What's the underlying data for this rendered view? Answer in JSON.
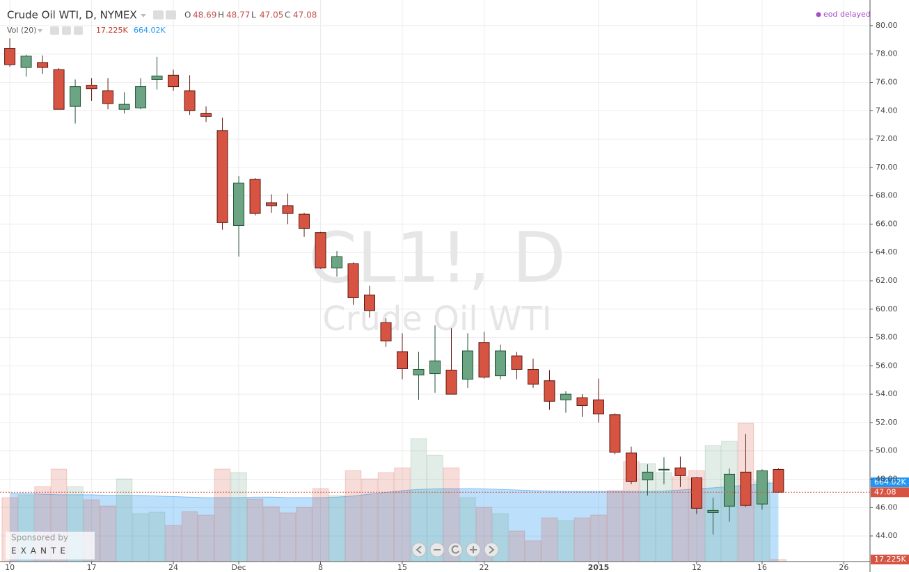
{
  "chart_data": {
    "type": "candlestick",
    "title": "Crude Oil WTI, D, NYMEX",
    "watermark": "CL1!, D",
    "watermark_subtitle": "Crude Oil WTI",
    "status": "eod delayed",
    "ohlc_labels": [
      "O",
      "H",
      "L",
      "C"
    ],
    "open": [
      78.4,
      77.05,
      77.4,
      76.9,
      74.3,
      75.8,
      75.4,
      74.1,
      74.2,
      76.2,
      76.5,
      75.4,
      73.8,
      72.6,
      65.9,
      69.15,
      67.5,
      67.3,
      66.7,
      65.4,
      62.9,
      63.2,
      61.0,
      59.05,
      57.0,
      55.35,
      55.45,
      55.7,
      55.05,
      57.65,
      55.3,
      56.7,
      55.75,
      54.95,
      53.6,
      53.75,
      53.6,
      52.55,
      49.85,
      47.95,
      48.65,
      48.8,
      48.1,
      45.65,
      46.1,
      48.5,
      46.25,
      48.69
    ],
    "high": [
      79.1,
      77.95,
      77.9,
      77.0,
      76.2,
      76.3,
      76.3,
      75.3,
      76.3,
      77.8,
      76.9,
      76.5,
      74.3,
      73.5,
      69.4,
      69.25,
      68.1,
      68.15,
      66.8,
      65.45,
      64.1,
      63.3,
      61.65,
      59.35,
      58.3,
      57.0,
      58.85,
      58.65,
      58.3,
      58.4,
      57.5,
      57.0,
      56.5,
      55.7,
      54.2,
      54.0,
      55.1,
      52.65,
      50.3,
      49.05,
      49.55,
      49.6,
      48.15,
      46.7,
      48.75,
      51.2,
      48.7,
      48.77
    ],
    "low": [
      77.1,
      76.4,
      76.6,
      74.1,
      73.1,
      74.7,
      74.1,
      73.8,
      74.1,
      75.5,
      75.4,
      73.7,
      73.2,
      65.6,
      63.7,
      66.6,
      66.8,
      66.0,
      65.1,
      62.85,
      62.3,
      60.3,
      59.4,
      57.35,
      55.05,
      53.6,
      54.1,
      54.0,
      54.45,
      55.1,
      55.05,
      55.05,
      54.45,
      52.9,
      52.7,
      52.4,
      52.0,
      49.75,
      47.65,
      46.85,
      47.65,
      47.45,
      45.55,
      44.1,
      45.0,
      46.05,
      45.85,
      47.05
    ],
    "close": [
      77.25,
      77.85,
      77.05,
      74.1,
      75.7,
      75.55,
      74.5,
      74.45,
      75.7,
      76.45,
      75.7,
      74.0,
      73.6,
      66.1,
      68.9,
      66.75,
      67.3,
      66.75,
      65.7,
      62.9,
      63.7,
      60.8,
      59.9,
      57.75,
      55.8,
      55.75,
      56.35,
      54.0,
      57.05,
      55.2,
      57.05,
      55.75,
      54.7,
      53.5,
      54.0,
      53.2,
      52.6,
      49.9,
      47.85,
      48.5,
      48.7,
      48.25,
      45.95,
      45.8,
      48.35,
      46.15,
      48.6,
      47.08
    ],
    "up_color": "#6ba583",
    "down_color": "#d75442",
    "xlim": [
      -0.6,
      52.6
    ],
    "xticks": [
      {
        "value": 0,
        "label": "10"
      },
      {
        "value": 5,
        "label": "17"
      },
      {
        "value": 10,
        "label": "24"
      },
      {
        "value": 14,
        "label": "Dec"
      },
      {
        "value": 19,
        "label": "8"
      },
      {
        "value": 24,
        "label": "15"
      },
      {
        "value": 29,
        "label": "22"
      },
      {
        "value": 36,
        "label": "2015"
      },
      {
        "value": 42,
        "label": "12"
      },
      {
        "value": 46,
        "label": "16"
      },
      {
        "value": 51,
        "label": "26"
      }
    ],
    "ylim": [
      42.19,
      81.81
    ],
    "yticks": [
      {
        "value": 44,
        "label": "44.00"
      },
      {
        "value": 46,
        "label": "46.00"
      },
      {
        "value": 48,
        "label": "48.00"
      },
      {
        "value": 50,
        "label": "50.00"
      },
      {
        "value": 52,
        "label": "52.00"
      },
      {
        "value": 54,
        "label": "54.00"
      },
      {
        "value": 56,
        "label": "56.00"
      },
      {
        "value": 58,
        "label": "58.00"
      },
      {
        "value": 60,
        "label": "60.00"
      },
      {
        "value": 62,
        "label": "62.00"
      },
      {
        "value": 64,
        "label": "64.00"
      },
      {
        "value": 66,
        "label": "66.00"
      },
      {
        "value": 68,
        "label": "68.00"
      },
      {
        "value": 70,
        "label": "70.00"
      },
      {
        "value": 72,
        "label": "72.00"
      },
      {
        "value": 74,
        "label": "74.00"
      },
      {
        "value": 76,
        "label": "76.00"
      },
      {
        "value": 78,
        "label": "78.00"
      },
      {
        "value": 80,
        "label": "80.00"
      }
    ],
    "grid": true,
    "volume": {
      "name": "Vol (20)",
      "values": [
        536,
        559,
        629,
        775,
        629,
        518,
        466,
        693,
        402,
        414,
        303,
        419,
        390,
        775,
        746,
        524,
        460,
        408,
        454,
        612,
        553,
        763,
        693,
        746,
        786,
        1031,
        891,
        786,
        536,
        454,
        402,
        256,
        175,
        367,
        344,
        367,
        390,
        594,
        839,
        821,
        746,
        711,
        763,
        973,
        1008,
        1159,
        676,
        17.225
      ],
      "latest_label": "17.225K",
      "ylim": [
        0,
        4707
      ],
      "ma": {
        "values": [
          571,
          571,
          565,
          560,
          560,
          560,
          555,
          555,
          555,
          550,
          545,
          540,
          536,
          536,
          536,
          540,
          540,
          536,
          536,
          536,
          540,
          550,
          565,
          580,
          595,
          605,
          610,
          612,
          612,
          610,
          605,
          600,
          595,
          592,
          590,
          589,
          589,
          589,
          589,
          589,
          592,
          600,
          610,
          618,
          629,
          640,
          652,
          664.02
        ],
        "latest_label": "664.02K",
        "color": "#2196f3"
      }
    },
    "sponsor": {
      "text": "Sponsored by",
      "name": "EXANTE"
    }
  }
}
